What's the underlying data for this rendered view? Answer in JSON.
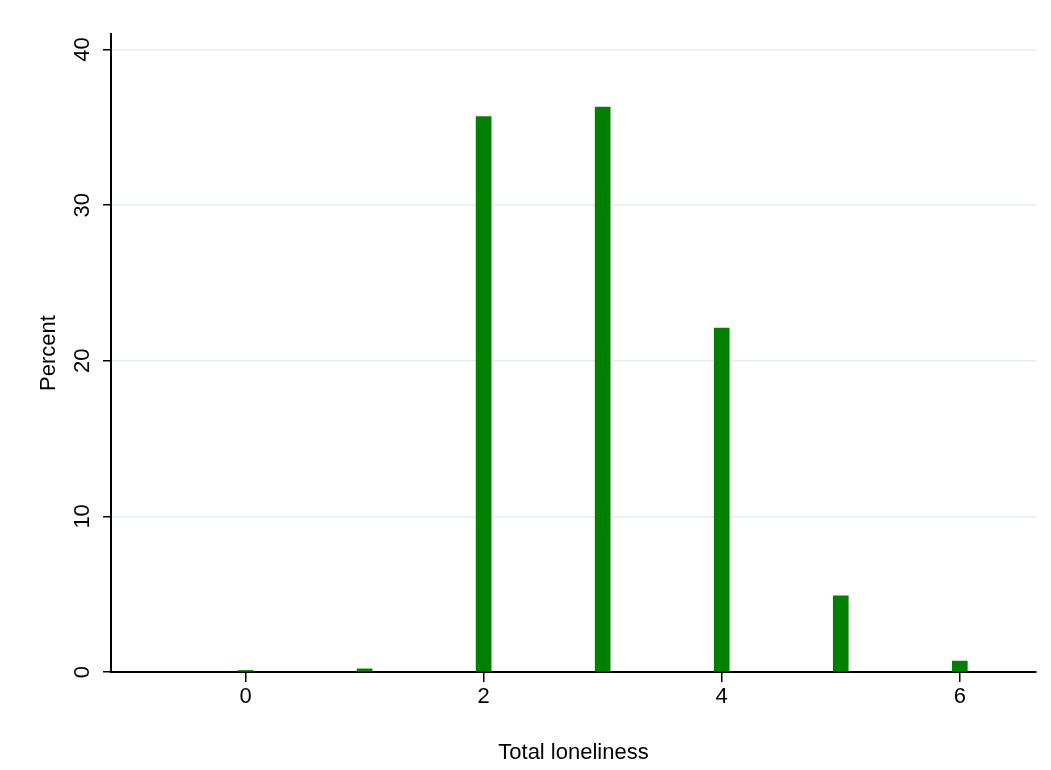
{
  "chart_data": {
    "type": "bar",
    "xlabel": "Total loneliness",
    "ylabel": "Percent",
    "x": [
      0,
      1,
      2,
      3,
      4,
      5,
      6
    ],
    "values": [
      0.1,
      0.2,
      35.7,
      36.3,
      22.1,
      4.9,
      0.7
    ],
    "color": "#007f00",
    "xlim": [
      -1.13,
      6.64
    ],
    "xticks": [
      0,
      2,
      4,
      6
    ],
    "ylim": [
      0,
      41
    ],
    "yticks": [
      0,
      10,
      20,
      30,
      40
    ],
    "grid": "y",
    "legend": false
  }
}
